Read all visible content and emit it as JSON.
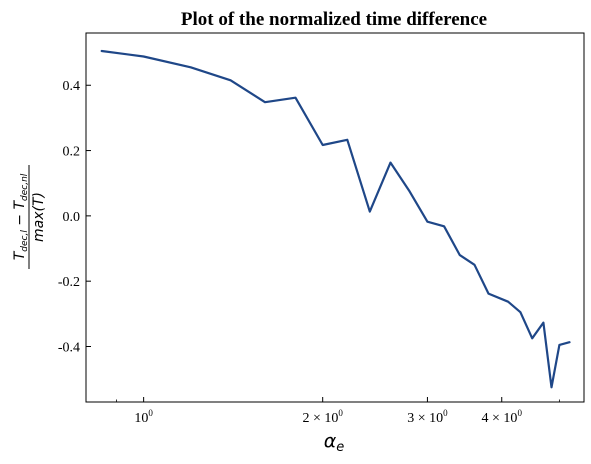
{
  "chart_data": {
    "type": "line",
    "title": "Plot of the normalized time difference",
    "xscale": "log",
    "xlabel": "α_e",
    "ylabel": "(T_dec,l − T_dec,nl) / max(T)",
    "xlim": [
      0.8,
      5.5
    ],
    "ylim": [
      -0.57,
      0.56
    ],
    "grid": false,
    "line_color": "#1f4788",
    "x_ticks": [
      {
        "value": 1,
        "base": "10",
        "exp": "0"
      },
      {
        "value": 2,
        "base": "2 × 10",
        "exp": "0"
      },
      {
        "value": 3,
        "base": "3 × 10",
        "exp": "0"
      },
      {
        "value": 4,
        "base": "4 × 10",
        "exp": "0"
      }
    ],
    "y_ticks": [
      "0.4",
      "0.2",
      "0.0",
      "-0.2",
      "-0.4"
    ],
    "series": [
      {
        "x": [
          0.85,
          1.0,
          1.2,
          1.4,
          1.6,
          1.8,
          2.0,
          2.2,
          2.4,
          2.6,
          2.8,
          3.0,
          3.2,
          3.4,
          3.6,
          3.8,
          4.1,
          4.3,
          4.5,
          4.7,
          4.85,
          5.0,
          5.2
        ],
        "y": [
          0.505,
          0.488,
          0.455,
          0.415,
          0.348,
          0.362,
          0.217,
          0.233,
          0.013,
          0.163,
          0.075,
          -0.018,
          -0.032,
          -0.12,
          -0.15,
          -0.238,
          -0.263,
          -0.295,
          -0.375,
          -0.327,
          -0.525,
          -0.395,
          -0.387
        ]
      }
    ]
  }
}
